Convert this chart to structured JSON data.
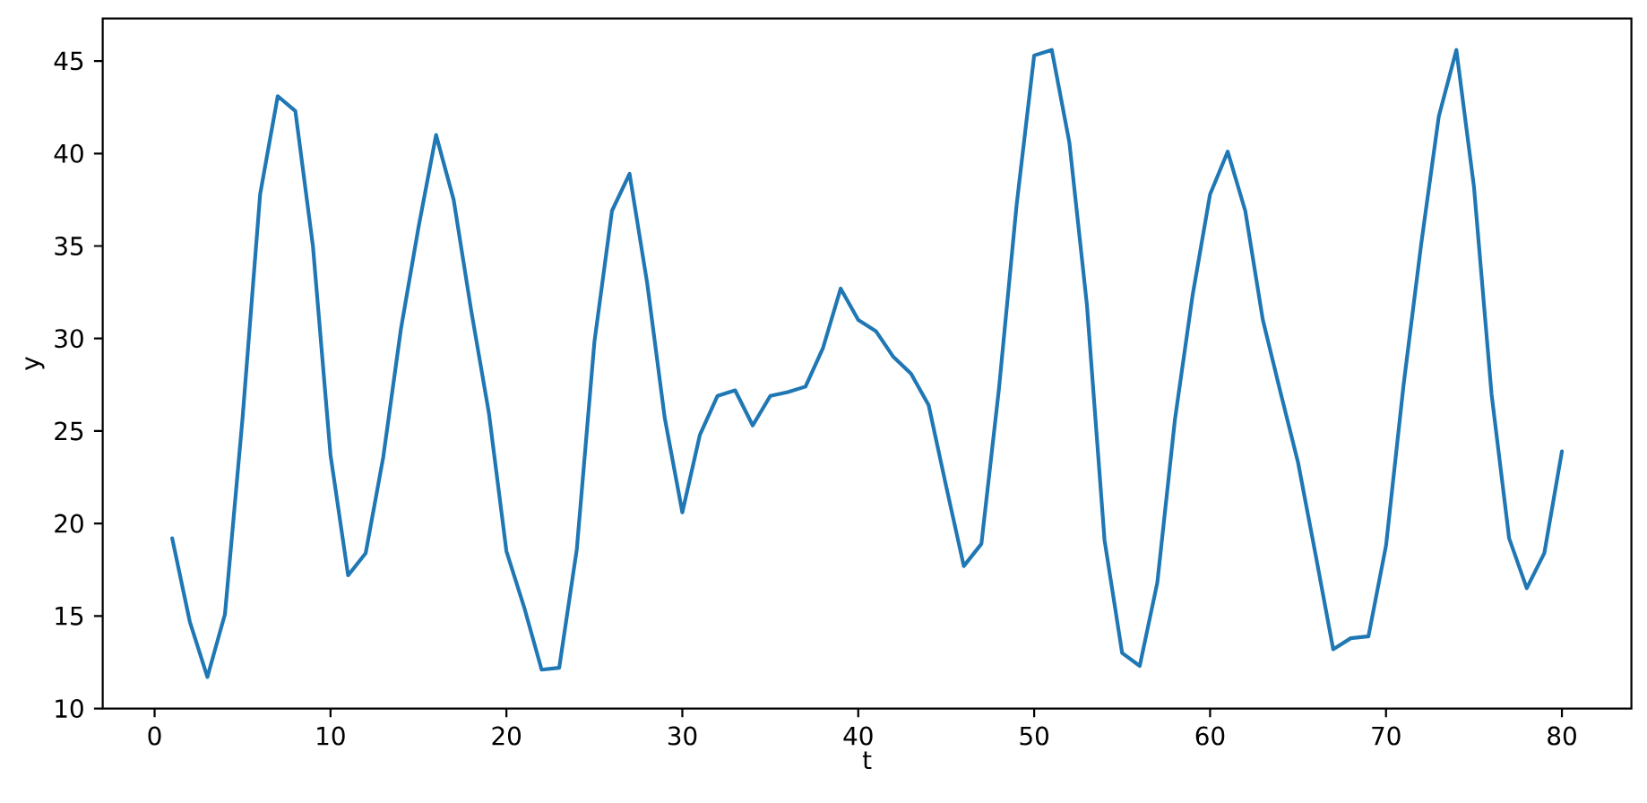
{
  "chart_data": {
    "type": "line",
    "xlabel": "t",
    "ylabel": "y",
    "x": [
      1,
      2,
      3,
      4,
      5,
      6,
      7,
      8,
      9,
      10,
      11,
      12,
      13,
      14,
      15,
      16,
      17,
      18,
      19,
      20,
      21,
      22,
      23,
      24,
      25,
      26,
      27,
      28,
      29,
      30,
      31,
      32,
      33,
      34,
      35,
      36,
      37,
      38,
      39,
      40,
      41,
      42,
      43,
      44,
      45,
      46,
      47,
      48,
      49,
      50,
      51,
      52,
      53,
      54,
      55,
      56,
      57,
      58,
      59,
      60,
      61,
      62,
      63,
      64,
      65,
      66,
      67,
      68,
      69,
      70,
      71,
      72,
      73,
      74,
      75,
      76,
      77,
      78,
      79,
      80
    ],
    "series": [
      {
        "color": "#1f77b4",
        "values": [
          19.2,
          14.7,
          11.7,
          15.1,
          25.7,
          37.8,
          43.1,
          42.3,
          35.0,
          23.7,
          17.2,
          18.4,
          23.6,
          30.5,
          36.0,
          41.0,
          37.5,
          31.5,
          26.0,
          18.5,
          15.5,
          12.1,
          12.2,
          18.6,
          29.8,
          36.9,
          38.9,
          33.0,
          25.7,
          20.6,
          24.8,
          26.9,
          27.2,
          25.3,
          26.9,
          27.1,
          27.4,
          29.5,
          32.7,
          31.0,
          30.4,
          29.0,
          28.1,
          26.4,
          22.0,
          17.7,
          18.9,
          27.3,
          37.2,
          45.3,
          45.6,
          40.6,
          31.8,
          19.1,
          13.0,
          12.3,
          16.8,
          25.6,
          32.3,
          37.8,
          40.1,
          36.9,
          31.0,
          27.1,
          23.3,
          18.3,
          13.2,
          13.8,
          13.9,
          18.8,
          27.5,
          35.1,
          42.0,
          45.6,
          38.2,
          27.0,
          19.2,
          16.5,
          18.4,
          23.9
        ]
      }
    ],
    "xlim": [
      -2.95,
      83.95
    ],
    "ylim": [
      10.0,
      47.3
    ],
    "xticks": [
      0,
      10,
      20,
      30,
      40,
      50,
      60,
      70,
      80
    ],
    "yticks": [
      10,
      15,
      20,
      25,
      30,
      35,
      40,
      45
    ],
    "line_style": "solid"
  }
}
